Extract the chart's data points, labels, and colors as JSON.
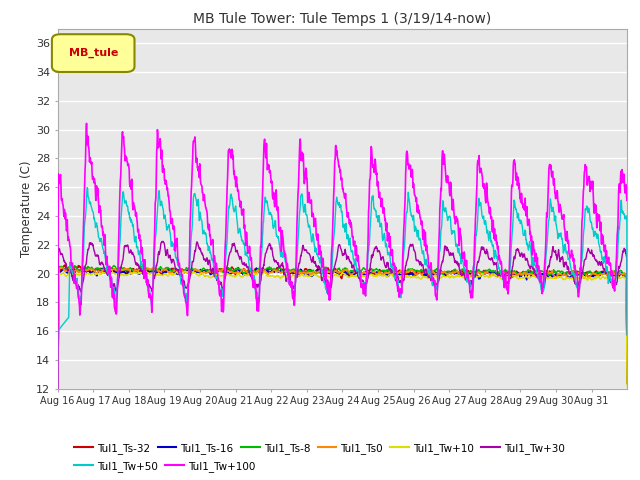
{
  "title": "MB Tule Tower: Tule Temps 1 (3/19/14-now)",
  "ylabel": "Temperature (C)",
  "ylim": [
    12,
    37
  ],
  "yticks": [
    12,
    14,
    16,
    18,
    20,
    22,
    24,
    26,
    28,
    30,
    32,
    34,
    36
  ],
  "n_days": 16,
  "xtick_labels": [
    "Aug 16",
    "Aug 17",
    "Aug 18",
    "Aug 19",
    "Aug 20",
    "Aug 21",
    "Aug 22",
    "Aug 23",
    "Aug 24",
    "Aug 25",
    "Aug 26",
    "Aug 27",
    "Aug 28",
    "Aug 29",
    "Aug 30",
    "Aug 31"
  ],
  "bg_color": "#e8e8e8",
  "grid_color": "#ffffff",
  "series": [
    {
      "label": "Tul1_Ts-32",
      "color": "#cc0000",
      "lw": 1.0
    },
    {
      "label": "Tul1_Ts-16",
      "color": "#0000cc",
      "lw": 1.0
    },
    {
      "label": "Tul1_Ts-8",
      "color": "#00bb00",
      "lw": 1.0
    },
    {
      "label": "Tul1_Ts0",
      "color": "#ff8800",
      "lw": 1.0
    },
    {
      "label": "Tul1_Tw+10",
      "color": "#dddd00",
      "lw": 1.0
    },
    {
      "label": "Tul1_Tw+30",
      "color": "#aa00aa",
      "lw": 1.0
    },
    {
      "label": "Tul1_Tw+50",
      "color": "#00cccc",
      "lw": 1.0
    },
    {
      "label": "Tul1_Tw+100",
      "color": "#ff00ff",
      "lw": 1.2
    }
  ],
  "legend_box_color": "#ffff99",
  "legend_box_edge": "#888800",
  "legend_text": "MB_tule",
  "legend_text_color": "#cc0000",
  "figsize": [
    6.4,
    4.8
  ],
  "dpi": 100
}
